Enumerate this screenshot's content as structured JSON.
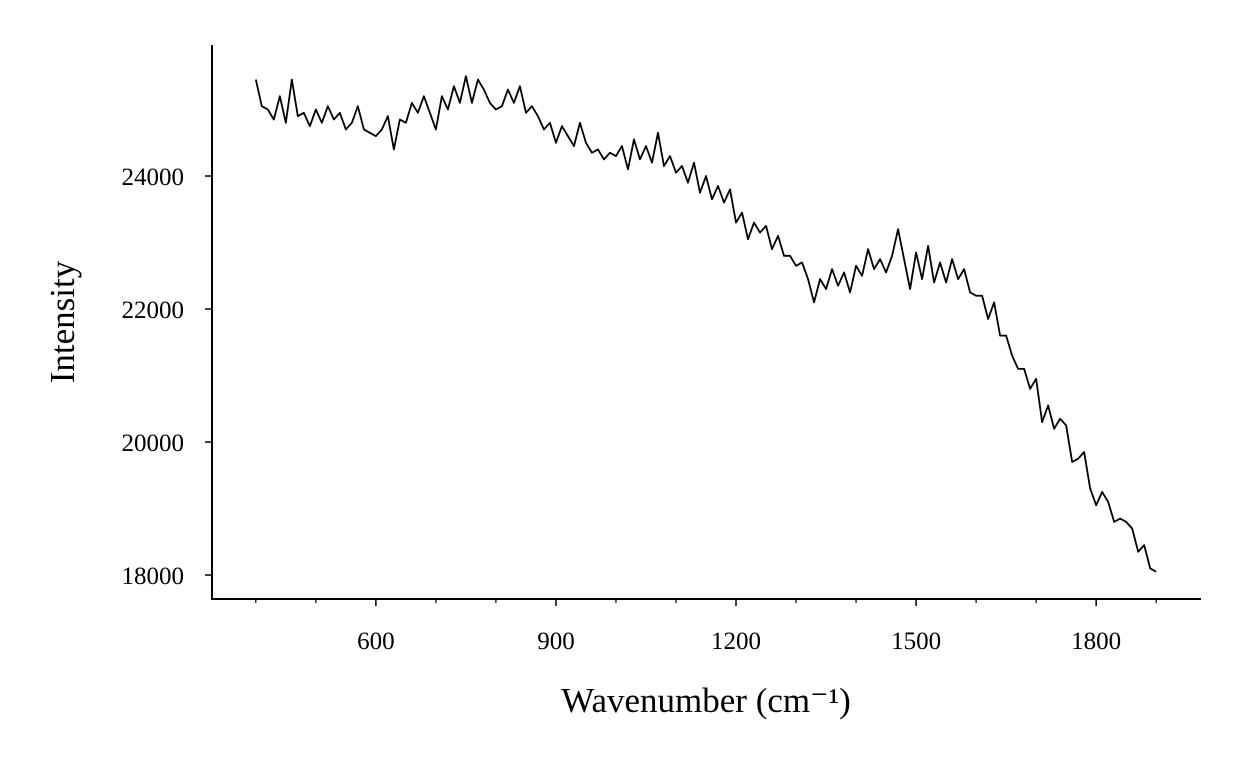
{
  "chart_data": {
    "type": "line",
    "xlabel": "Wavenumber (cm⁻¹)",
    "ylabel": "Intensity",
    "color": "#000000",
    "x": [
      400,
      410,
      420,
      430,
      440,
      450,
      460,
      470,
      480,
      490,
      500,
      510,
      520,
      530,
      540,
      550,
      560,
      570,
      580,
      590,
      600,
      610,
      620,
      630,
      640,
      650,
      660,
      670,
      680,
      690,
      700,
      710,
      720,
      730,
      740,
      750,
      760,
      770,
      780,
      790,
      800,
      810,
      820,
      830,
      840,
      850,
      860,
      870,
      880,
      890,
      900,
      910,
      920,
      930,
      940,
      950,
      960,
      970,
      980,
      990,
      1000,
      1010,
      1020,
      1030,
      1040,
      1050,
      1060,
      1070,
      1080,
      1090,
      1100,
      1110,
      1120,
      1130,
      1140,
      1150,
      1160,
      1170,
      1180,
      1190,
      1200,
      1210,
      1220,
      1230,
      1240,
      1250,
      1260,
      1270,
      1280,
      1290,
      1300,
      1310,
      1320,
      1330,
      1340,
      1350,
      1360,
      1370,
      1380,
      1390,
      1400,
      1410,
      1420,
      1430,
      1440,
      1450,
      1460,
      1470,
      1480,
      1490,
      1500,
      1510,
      1520,
      1530,
      1540,
      1550,
      1560,
      1570,
      1580,
      1590,
      1600,
      1610,
      1620,
      1630,
      1640,
      1650,
      1660,
      1670,
      1680,
      1690,
      1700,
      1710,
      1720,
      1730,
      1740,
      1750,
      1760,
      1770,
      1780,
      1790,
      1800,
      1810,
      1820,
      1830,
      1840,
      1850,
      1860,
      1870,
      1880,
      1890,
      1900
    ],
    "values": [
      25450,
      25050,
      25000,
      24850,
      25200,
      24800,
      25450,
      24900,
      24950,
      24750,
      25000,
      24800,
      25050,
      24850,
      24950,
      24700,
      24800,
      25050,
      24700,
      24650,
      24600,
      24700,
      24900,
      24400,
      24850,
      24800,
      25100,
      24950,
      25200,
      24950,
      24700,
      25200,
      25000,
      25350,
      25100,
      25500,
      25100,
      25450,
      25300,
      25100,
      25000,
      25050,
      25300,
      25100,
      25350,
      24950,
      25050,
      24900,
      24700,
      24800,
      24500,
      24750,
      24600,
      24450,
      24800,
      24500,
      24350,
      24400,
      24250,
      24350,
      24300,
      24450,
      24100,
      24550,
      24250,
      24450,
      24200,
      24650,
      24150,
      24300,
      24050,
      24150,
      23900,
      24200,
      23750,
      24000,
      23650,
      23850,
      23600,
      23800,
      23300,
      23450,
      23050,
      23300,
      23150,
      23250,
      22900,
      23100,
      22800,
      22800,
      22650,
      22700,
      22450,
      22100,
      22450,
      22300,
      22600,
      22350,
      22550,
      22250,
      22650,
      22500,
      22900,
      22600,
      22750,
      22550,
      22800,
      23200,
      22750,
      22300,
      22850,
      22450,
      22950,
      22400,
      22700,
      22400,
      22750,
      22450,
      22600,
      22250,
      22200,
      22200,
      21850,
      22100,
      21600,
      21600,
      21300,
      21100,
      21100,
      20800,
      20950,
      20300,
      20550,
      20200,
      20350,
      20250,
      19700,
      19750,
      19850,
      19300,
      19050,
      19250,
      19100,
      18800,
      18850,
      18800,
      18700,
      18350,
      18450,
      18100,
      18050
    ],
    "xlim": [
      327,
      1973
    ],
    "ylim": [
      17640,
      25970
    ],
    "xticks": [
      600,
      900,
      1200,
      1500,
      1800
    ],
    "xminorticks": [
      400,
      500,
      700,
      800,
      1000,
      1100,
      1300,
      1400,
      1600,
      1700,
      1900
    ],
    "yticks": [
      18000,
      20000,
      22000,
      24000
    ]
  }
}
